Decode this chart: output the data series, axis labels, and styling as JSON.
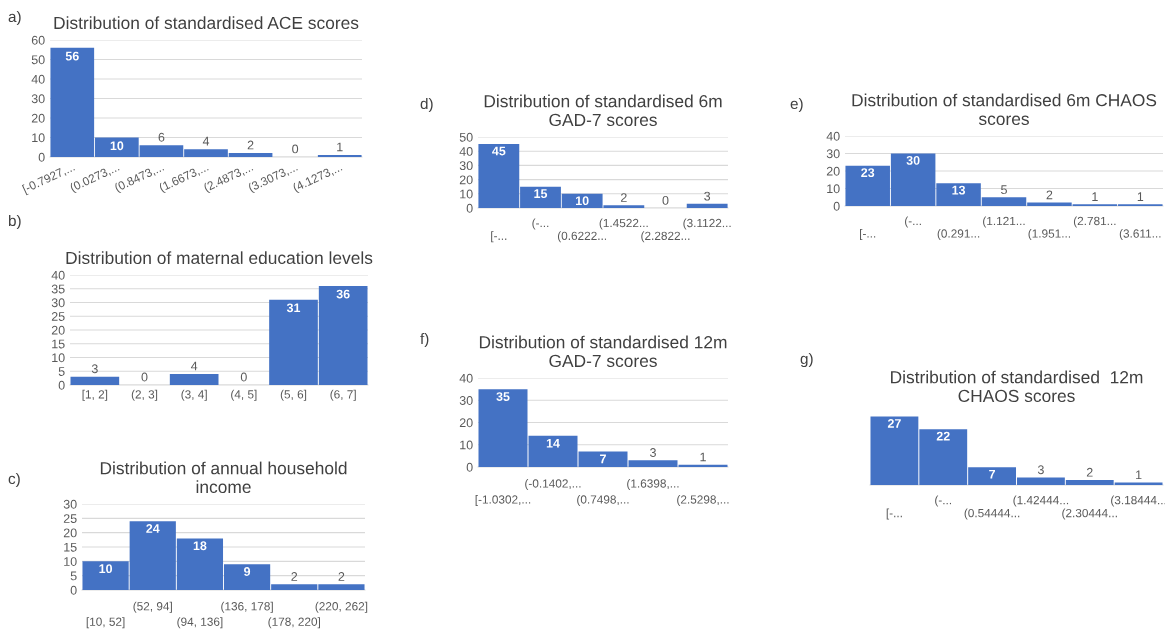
{
  "chart_data": [
    {
      "type": "bar",
      "title": "Distribution of standardised ACE scores",
      "annotations": [
        "a)"
      ],
      "categories": [
        "[-0.7927,...",
        "(0.0273,...",
        "(0.8473,...",
        "(1.6673,...",
        "(2.4873,...",
        "(3.3073,...",
        "(4.1273,..."
      ],
      "values": [
        56,
        10,
        6,
        4,
        2,
        0,
        1
      ],
      "color": "#4472c4",
      "ylim": [
        0,
        60
      ],
      "yticks": [
        0,
        10,
        20,
        30,
        40,
        50,
        60
      ],
      "grid": "y",
      "data_labels": true
    },
    {
      "type": "bar",
      "title": "Distribution of maternal education levels",
      "annotations": [
        "b)"
      ],
      "categories": [
        "[1, 2]",
        "(2, 3]",
        "(3, 4]",
        "(4, 5]",
        "(5, 6]",
        "(6, 7]"
      ],
      "values": [
        3,
        0,
        4,
        0,
        31,
        36
      ],
      "color": "#4472c4",
      "ylim": [
        0,
        40
      ],
      "yticks": [
        0,
        5,
        10,
        15,
        20,
        25,
        30,
        35,
        40
      ],
      "grid": "y",
      "data_labels": true
    },
    {
      "type": "bar",
      "title": "Distribution of annual household income",
      "annotations": [
        "c)"
      ],
      "categories": [
        "[10, 52]",
        "(52, 94]",
        "(94, 136]",
        "(136, 178]",
        "(178, 220]",
        "(220, 262]"
      ],
      "values": [
        10,
        24,
        18,
        9,
        2,
        2
      ],
      "color": "#4472c4",
      "ylim": [
        0,
        30
      ],
      "yticks": [
        0,
        5,
        10,
        15,
        20,
        25,
        30
      ],
      "grid": "y",
      "data_labels": true
    },
    {
      "type": "bar",
      "title": "Distribution of standardised 6m GAD-7 scores",
      "annotations": [
        "d)"
      ],
      "categories": [
        "[-...",
        "(-...",
        "(0.6222...",
        "(1.4522...",
        "(2.2822...",
        "(3.1122..."
      ],
      "values": [
        45,
        15,
        10,
        2,
        0,
        3
      ],
      "color": "#4472c4",
      "ylim": [
        0,
        50
      ],
      "yticks": [
        0,
        10,
        20,
        30,
        40,
        50
      ],
      "grid": "y",
      "data_labels": true
    },
    {
      "type": "bar",
      "title": "Distribution of standardised 6m CHAOS scores",
      "annotations": [
        "e)"
      ],
      "categories": [
        "[-...",
        "(-...",
        "(0.291...",
        "(1.121...",
        "(1.951...",
        "(2.781...",
        "(3.611..."
      ],
      "values": [
        23,
        30,
        13,
        5,
        2,
        1,
        1
      ],
      "color": "#4472c4",
      "ylim": [
        0,
        40
      ],
      "yticks": [
        0,
        10,
        20,
        30,
        40
      ],
      "grid": "y",
      "data_labels": true
    },
    {
      "type": "bar",
      "title": "Distribution of standardised 12m GAD-7 scores",
      "annotations": [
        "f)"
      ],
      "categories": [
        "[-1.0302,...",
        "(-0.1402,...",
        "(0.7498,...",
        "(1.6398,...",
        "(2.5298,..."
      ],
      "values": [
        35,
        14,
        7,
        3,
        1
      ],
      "color": "#4472c4",
      "ylim": [
        0,
        40
      ],
      "yticks": [
        0,
        10,
        20,
        30,
        40
      ],
      "grid": "y",
      "data_labels": true
    },
    {
      "type": "bar",
      "title": "Distribution of standardised  12m CHAOS scores",
      "annotations": [
        "g)"
      ],
      "categories": [
        "[-...",
        "(-...",
        "(0.54444...",
        "(1.42444...",
        "(2.30444...",
        "(3.18444..."
      ],
      "values": [
        27,
        22,
        7,
        3,
        2,
        1
      ],
      "color": "#4472c4",
      "data_labels": true,
      "tick_labels": "x"
    }
  ]
}
